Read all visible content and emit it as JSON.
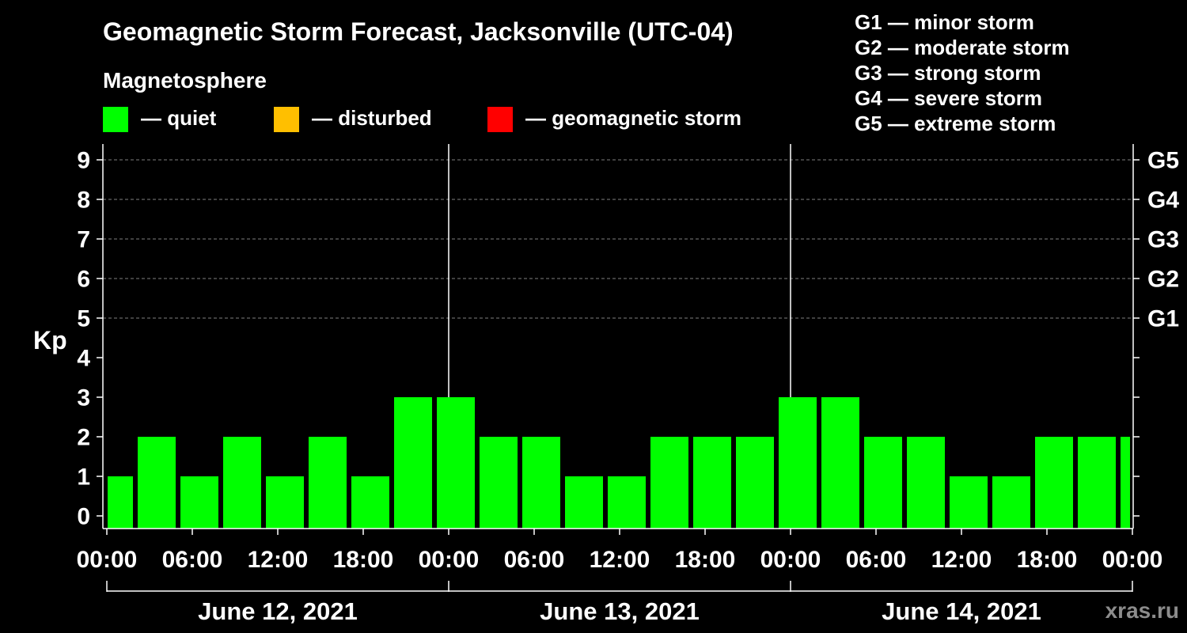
{
  "title": "Geomagnetic Storm Forecast, Jacksonville (UTC-04)",
  "legend": {
    "heading": "Magnetosphere",
    "placement": "top-left",
    "items": [
      {
        "label": "— quiet",
        "color": "#00ff00"
      },
      {
        "label": "— disturbed",
        "color": "#ffbf00"
      },
      {
        "label": "— geomagnetic storm",
        "color": "#ff0000"
      }
    ]
  },
  "storm_scale": {
    "placement": "top-right",
    "items": [
      "G1 — minor storm",
      "G2 — moderate storm",
      "G3 — strong storm",
      "G4 — severe storm",
      "G5 — extreme storm"
    ]
  },
  "watermark": "xras.ru",
  "colors": {
    "background": "#000000",
    "axis": "#ffffff",
    "grid": "#808080",
    "watermark": "#8c8c8c"
  },
  "chart_data": {
    "type": "bar",
    "ylabel": "Kp",
    "ylim": [
      -0.32,
      9.4
    ],
    "yticks": [
      0,
      1,
      2,
      3,
      4,
      5,
      6,
      7,
      8,
      9
    ],
    "y2_ticks": [
      {
        "value": 5,
        "label": "G1"
      },
      {
        "value": 6,
        "label": "G2"
      },
      {
        "value": 7,
        "label": "G3"
      },
      {
        "value": 8,
        "label": "G4"
      },
      {
        "value": 9,
        "label": "G5"
      }
    ],
    "grid": {
      "y": [
        5,
        6,
        7,
        8,
        9
      ],
      "style": "dashed"
    },
    "xlim": [
      "2021-06-12 00:00",
      "2021-06-15 00:00"
    ],
    "xticks": [
      {
        "time": "2021-06-12 00:00",
        "label": "00:00"
      },
      {
        "time": "2021-06-12 06:00",
        "label": "06:00"
      },
      {
        "time": "2021-06-12 12:00",
        "label": "12:00"
      },
      {
        "time": "2021-06-12 18:00",
        "label": "18:00"
      },
      {
        "time": "2021-06-13 00:00",
        "label": "00:00"
      },
      {
        "time": "2021-06-13 06:00",
        "label": "06:00"
      },
      {
        "time": "2021-06-13 12:00",
        "label": "12:00"
      },
      {
        "time": "2021-06-13 18:00",
        "label": "18:00"
      },
      {
        "time": "2021-06-14 00:00",
        "label": "00:00"
      },
      {
        "time": "2021-06-14 06:00",
        "label": "06:00"
      },
      {
        "time": "2021-06-14 12:00",
        "label": "12:00"
      },
      {
        "time": "2021-06-14 18:00",
        "label": "18:00"
      },
      {
        "time": "2021-06-15 00:00",
        "label": "00:00"
      }
    ],
    "day_dividers": [
      "2021-06-13 00:00",
      "2021-06-14 00:00"
    ],
    "days": [
      {
        "label": "June 12, 2021",
        "start": "2021-06-12 00:00",
        "end": "2021-06-13 00:00"
      },
      {
        "label": "June 13, 2021",
        "start": "2021-06-13 00:00",
        "end": "2021-06-14 00:00"
      },
      {
        "label": "June 14, 2021",
        "start": "2021-06-14 00:00",
        "end": "2021-06-15 00:00"
      }
    ],
    "bars": [
      {
        "start": "2021-06-12 00:00",
        "end": "2021-06-12 02:00",
        "kp": 1,
        "color": "#00ff00"
      },
      {
        "start": "2021-06-12 02:00",
        "end": "2021-06-12 05:00",
        "kp": 2,
        "color": "#00ff00"
      },
      {
        "start": "2021-06-12 05:00",
        "end": "2021-06-12 08:00",
        "kp": 1,
        "color": "#00ff00"
      },
      {
        "start": "2021-06-12 08:00",
        "end": "2021-06-12 11:00",
        "kp": 2,
        "color": "#00ff00"
      },
      {
        "start": "2021-06-12 11:00",
        "end": "2021-06-12 14:00",
        "kp": 1,
        "color": "#00ff00"
      },
      {
        "start": "2021-06-12 14:00",
        "end": "2021-06-12 17:00",
        "kp": 2,
        "color": "#00ff00"
      },
      {
        "start": "2021-06-12 17:00",
        "end": "2021-06-12 20:00",
        "kp": 1,
        "color": "#00ff00"
      },
      {
        "start": "2021-06-12 20:00",
        "end": "2021-06-12 23:00",
        "kp": 3,
        "color": "#00ff00"
      },
      {
        "start": "2021-06-12 23:00",
        "end": "2021-06-13 02:00",
        "kp": 3,
        "color": "#00ff00"
      },
      {
        "start": "2021-06-13 02:00",
        "end": "2021-06-13 05:00",
        "kp": 2,
        "color": "#00ff00"
      },
      {
        "start": "2021-06-13 05:00",
        "end": "2021-06-13 08:00",
        "kp": 2,
        "color": "#00ff00"
      },
      {
        "start": "2021-06-13 08:00",
        "end": "2021-06-13 11:00",
        "kp": 1,
        "color": "#00ff00"
      },
      {
        "start": "2021-06-13 11:00",
        "end": "2021-06-13 14:00",
        "kp": 1,
        "color": "#00ff00"
      },
      {
        "start": "2021-06-13 14:00",
        "end": "2021-06-13 17:00",
        "kp": 2,
        "color": "#00ff00"
      },
      {
        "start": "2021-06-13 17:00",
        "end": "2021-06-13 20:00",
        "kp": 2,
        "color": "#00ff00"
      },
      {
        "start": "2021-06-13 20:00",
        "end": "2021-06-13 23:00",
        "kp": 2,
        "color": "#00ff00"
      },
      {
        "start": "2021-06-13 23:00",
        "end": "2021-06-14 02:00",
        "kp": 3,
        "color": "#00ff00"
      },
      {
        "start": "2021-06-14 02:00",
        "end": "2021-06-14 05:00",
        "kp": 3,
        "color": "#00ff00"
      },
      {
        "start": "2021-06-14 05:00",
        "end": "2021-06-14 08:00",
        "kp": 2,
        "color": "#00ff00"
      },
      {
        "start": "2021-06-14 08:00",
        "end": "2021-06-14 11:00",
        "kp": 2,
        "color": "#00ff00"
      },
      {
        "start": "2021-06-14 11:00",
        "end": "2021-06-14 14:00",
        "kp": 1,
        "color": "#00ff00"
      },
      {
        "start": "2021-06-14 14:00",
        "end": "2021-06-14 17:00",
        "kp": 1,
        "color": "#00ff00"
      },
      {
        "start": "2021-06-14 17:00",
        "end": "2021-06-14 20:00",
        "kp": 2,
        "color": "#00ff00"
      },
      {
        "start": "2021-06-14 20:00",
        "end": "2021-06-14 23:00",
        "kp": 2,
        "color": "#00ff00"
      },
      {
        "start": "2021-06-14 23:00",
        "end": "2021-06-15 00:00",
        "kp": 2,
        "color": "#00ff00"
      }
    ]
  }
}
